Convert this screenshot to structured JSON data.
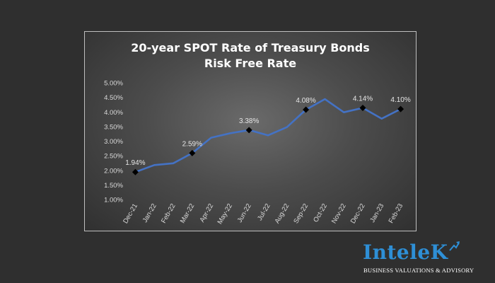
{
  "chart_data": {
    "type": "line",
    "title_lines": [
      "20-year SPOT Rate of Treasury Bonds",
      "Risk Free Rate"
    ],
    "xlabel": "",
    "ylabel": "",
    "categories": [
      "Dec-21",
      "Jan-22",
      "Feb-22",
      "Mar-22",
      "Apr-22",
      "May-22",
      "Jun-22",
      "Jul-22",
      "Aug-22",
      "Sep-22",
      "Oct-22",
      "Nov-22",
      "Dec-22",
      "Jan-23",
      "Feb-23"
    ],
    "series": [
      {
        "values": [
          1.94,
          2.18,
          2.24,
          2.59,
          3.12,
          3.27,
          3.38,
          3.2,
          3.48,
          4.08,
          4.44,
          3.99,
          4.14,
          3.77,
          4.1
        ],
        "color": "#4472c4"
      }
    ],
    "markers": [
      {
        "index": 0,
        "label": "1.94%"
      },
      {
        "index": 3,
        "label": "2.59%"
      },
      {
        "index": 6,
        "label": "3.38%"
      },
      {
        "index": 9,
        "label": "4.08%"
      },
      {
        "index": 12,
        "label": "4.14%"
      },
      {
        "index": 14,
        "label": "4.10%"
      }
    ],
    "yticks": [
      "1.00%",
      "1.50%",
      "2.00%",
      "2.50%",
      "3.00%",
      "3.50%",
      "4.00%",
      "4.50%",
      "5.00%"
    ],
    "ylim": [
      1.0,
      5.0
    ],
    "grid": false,
    "legend": "none"
  },
  "logo": {
    "name": "InteleK",
    "tagline": "BUSINESS VALUATIONS & ADVISORY",
    "color": "#2e8fd6"
  }
}
